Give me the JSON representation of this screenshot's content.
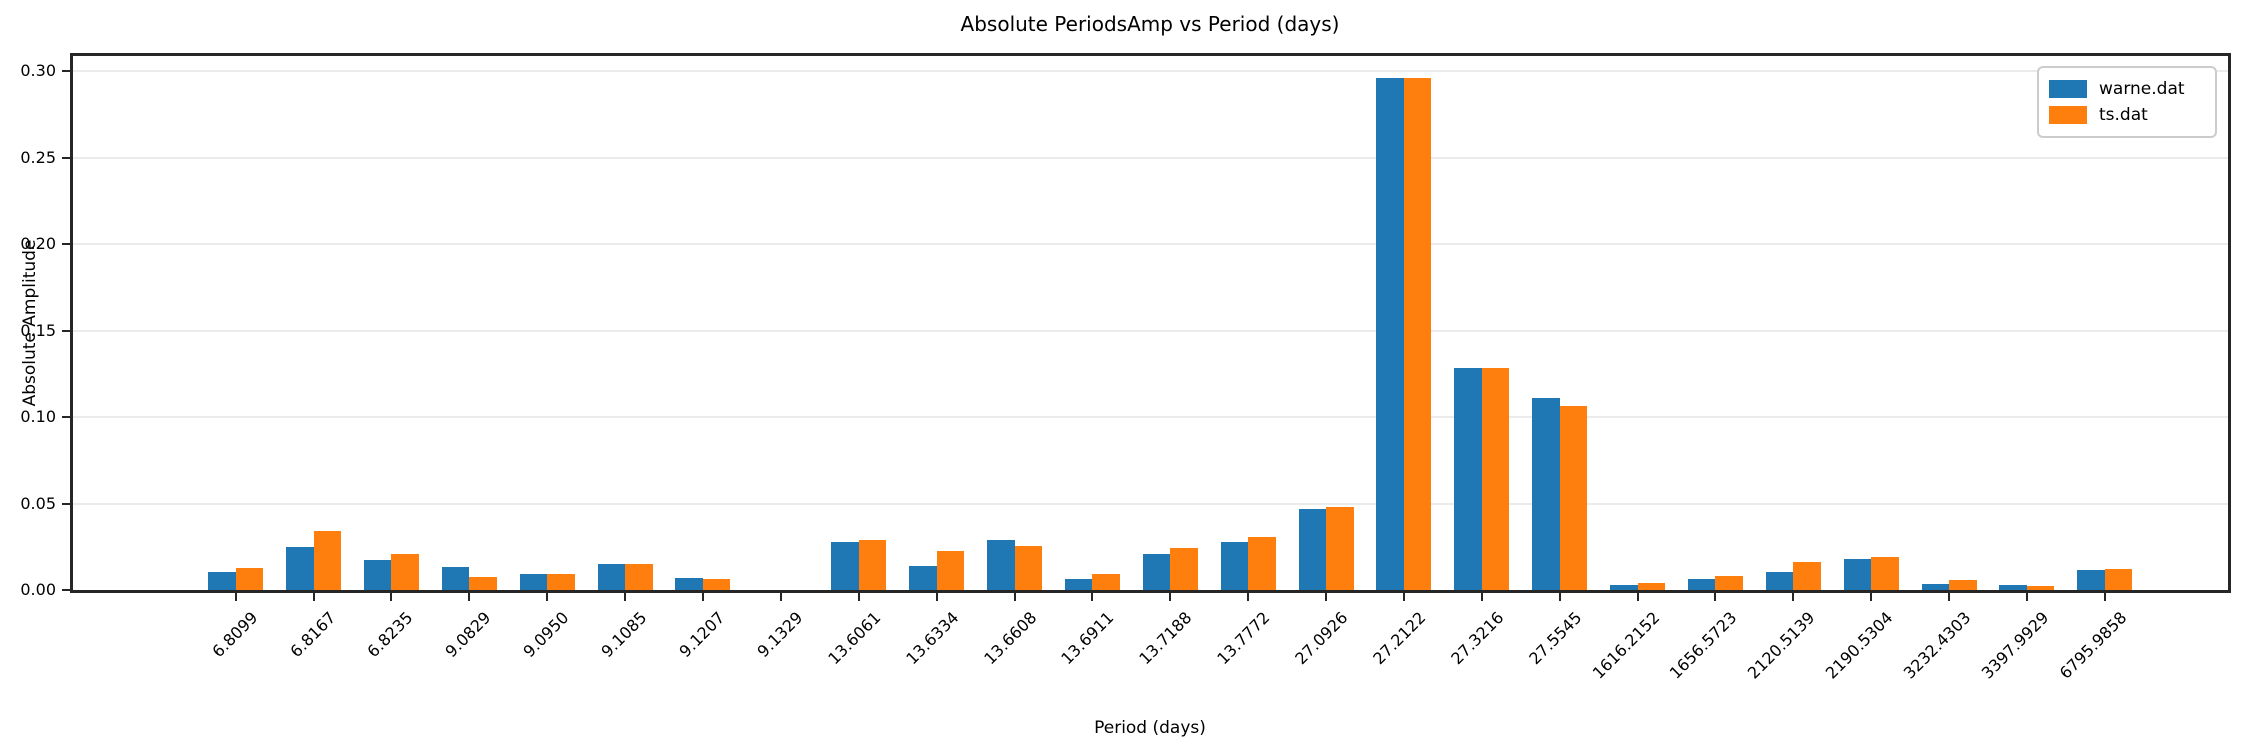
{
  "chart_data": {
    "type": "bar",
    "title": "Absolute PeriodsAmp vs Period (days)",
    "xlabel": "Period (days)",
    "ylabel": "Absolute Amplitude",
    "grid": true,
    "legend_position": "upper right",
    "ylim": [
      0,
      0.309
    ],
    "yticks": [
      {
        "label": "0.00",
        "value": 0.0
      },
      {
        "label": "0.05",
        "value": 0.05
      },
      {
        "label": "0.10",
        "value": 0.1
      },
      {
        "label": "0.15",
        "value": 0.15
      },
      {
        "label": "0.20",
        "value": 0.2
      },
      {
        "label": "0.25",
        "value": 0.25
      },
      {
        "label": "0.30",
        "value": 0.3
      }
    ],
    "categories": [
      "6.8099",
      "6.8167",
      "6.8235",
      "9.0829",
      "9.0950",
      "9.1085",
      "9.1207",
      "9.1329",
      "13.6061",
      "13.6334",
      "13.6608",
      "13.6911",
      "13.7188",
      "13.7772",
      "27.0926",
      "27.2122",
      "27.3216",
      "27.5545",
      "1616.2152",
      "1656.5723",
      "2120.5139",
      "2190.5304",
      "3232.4303",
      "3397.9929",
      "6795.9858"
    ],
    "series": [
      {
        "name": "warne.dat",
        "color": "#1f77b4",
        "values": [
          0.0102,
          0.025,
          0.0173,
          0.0134,
          0.009,
          0.0148,
          0.0068,
          0.0002,
          0.0279,
          0.0139,
          0.0289,
          0.0065,
          0.0208,
          0.0277,
          0.0466,
          0.296,
          0.1285,
          0.1112,
          0.0028,
          0.0065,
          0.0106,
          0.0177,
          0.0036,
          0.003,
          0.0115
        ]
      },
      {
        "name": "ts.dat",
        "color": "#ff7f0e",
        "values": [
          0.0127,
          0.034,
          0.0206,
          0.0075,
          0.0092,
          0.0148,
          0.0062,
          0.0002,
          0.0291,
          0.0225,
          0.0254,
          0.0094,
          0.0243,
          0.0306,
          0.048,
          0.296,
          0.1285,
          0.1064,
          0.004,
          0.0083,
          0.0164,
          0.0189,
          0.0055,
          0.0023,
          0.0122
        ]
      }
    ]
  }
}
